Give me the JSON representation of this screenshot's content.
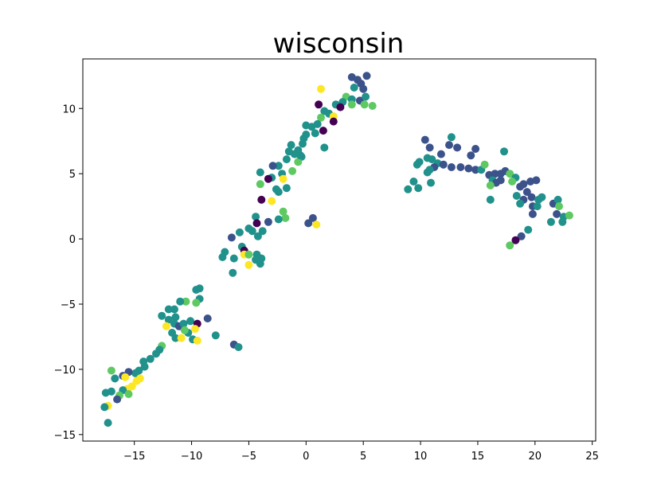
{
  "chart_data": {
    "type": "scatter",
    "title": "wisconsin",
    "xlabel": "",
    "ylabel": "",
    "xlim": [
      -19.5,
      25.3
    ],
    "ylim": [
      -15.5,
      13.8
    ],
    "xticks": [
      -15,
      -10,
      -5,
      0,
      5,
      10,
      15,
      20,
      25
    ],
    "yticks": [
      -15,
      -10,
      -5,
      0,
      5,
      10
    ],
    "grid": false,
    "legend": "none",
    "colors": {
      "c0": "#440154",
      "c1": "#3b528b",
      "c2": "#21918c",
      "c3": "#5ec962",
      "c4": "#fde725"
    },
    "points": [
      [
        4.0,
        12.4,
        "c1"
      ],
      [
        4.5,
        12.2,
        "c1"
      ],
      [
        5.3,
        12.5,
        "c1"
      ],
      [
        4.8,
        11.9,
        "c1"
      ],
      [
        4.2,
        11.6,
        "c2"
      ],
      [
        5.0,
        11.5,
        "c1"
      ],
      [
        1.3,
        11.5,
        "c4"
      ],
      [
        3.5,
        10.9,
        "c3"
      ],
      [
        4.0,
        10.7,
        "c2"
      ],
      [
        4.7,
        10.6,
        "c1"
      ],
      [
        5.2,
        10.9,
        "c2"
      ],
      [
        1.1,
        10.3,
        "c0"
      ],
      [
        3.2,
        10.5,
        "c2"
      ],
      [
        2.6,
        10.3,
        "c2"
      ],
      [
        3.0,
        10.1,
        "c0"
      ],
      [
        4.0,
        10.3,
        "c3"
      ],
      [
        5.1,
        10.3,
        "c3"
      ],
      [
        5.8,
        10.2,
        "c3"
      ],
      [
        1.6,
        9.8,
        "c2"
      ],
      [
        2.0,
        9.6,
        "c2"
      ],
      [
        1.3,
        9.3,
        "c3"
      ],
      [
        2.4,
        9.4,
        "c4"
      ],
      [
        2.4,
        9.0,
        "c0"
      ],
      [
        1.0,
        8.8,
        "c2"
      ],
      [
        0.5,
        8.6,
        "c2"
      ],
      [
        0.0,
        8.7,
        "c2"
      ],
      [
        1.5,
        8.3,
        "c0"
      ],
      [
        0.8,
        8.1,
        "c2"
      ],
      [
        0.0,
        8.0,
        "c2"
      ],
      [
        -0.2,
        7.7,
        "c2"
      ],
      [
        -1.3,
        7.2,
        "c2"
      ],
      [
        -0.3,
        7.3,
        "c2"
      ],
      [
        -0.7,
        6.8,
        "c2"
      ],
      [
        -1.5,
        6.7,
        "c2"
      ],
      [
        -1.0,
        6.5,
        "c2"
      ],
      [
        -0.4,
        6.3,
        "c2"
      ],
      [
        1.6,
        7.0,
        "c2"
      ],
      [
        -1.7,
        6.1,
        "c2"
      ],
      [
        -0.7,
        5.9,
        "c3"
      ],
      [
        -2.4,
        5.6,
        "c2"
      ],
      [
        -1.2,
        5.2,
        "c3"
      ],
      [
        -2.1,
        5.0,
        "c2"
      ],
      [
        -2.9,
        5.6,
        "c1"
      ],
      [
        -4.0,
        5.1,
        "c2"
      ],
      [
        -3.0,
        4.7,
        "c2"
      ],
      [
        -3.3,
        4.6,
        "c0"
      ],
      [
        -0.5,
        6.4,
        "c2"
      ],
      [
        -2.0,
        4.6,
        "c4"
      ],
      [
        -4.0,
        4.2,
        "c3"
      ],
      [
        -2.6,
        3.8,
        "c2"
      ],
      [
        -2.4,
        3.6,
        "c2"
      ],
      [
        -1.7,
        3.9,
        "c2"
      ],
      [
        -3.9,
        3.0,
        "c0"
      ],
      [
        -3.0,
        2.9,
        "c4"
      ],
      [
        -2.0,
        2.1,
        "c3"
      ],
      [
        -1.8,
        1.6,
        "c3"
      ],
      [
        -2.4,
        1.5,
        "c2"
      ],
      [
        -3.3,
        1.3,
        "c1"
      ],
      [
        -4.4,
        1.7,
        "c2"
      ],
      [
        -4.3,
        1.2,
        "c0"
      ],
      [
        -5.0,
        0.8,
        "c2"
      ],
      [
        -4.7,
        0.6,
        "c2"
      ],
      [
        -3.8,
        0.6,
        "c2"
      ],
      [
        -5.8,
        0.5,
        "c2"
      ],
      [
        -4.2,
        0.2,
        "c2"
      ],
      [
        -6.5,
        0.1,
        "c1"
      ],
      [
        -5.6,
        -0.6,
        "c2"
      ],
      [
        -5.4,
        -0.9,
        "c0"
      ],
      [
        -5.4,
        -1.2,
        "c4"
      ],
      [
        -5.0,
        -1.2,
        "c3"
      ],
      [
        -4.3,
        -1.2,
        "c2"
      ],
      [
        -4.4,
        -1.6,
        "c2"
      ],
      [
        -3.9,
        -1.5,
        "c2"
      ],
      [
        -4.0,
        -1.9,
        "c2"
      ],
      [
        -5.0,
        -2.0,
        "c4"
      ],
      [
        -6.3,
        -1.5,
        "c2"
      ],
      [
        -7.1,
        -1.0,
        "c2"
      ],
      [
        -7.3,
        -1.4,
        "c2"
      ],
      [
        -6.4,
        -2.6,
        "c2"
      ],
      [
        0.2,
        1.2,
        "c1"
      ],
      [
        0.6,
        1.6,
        "c1"
      ],
      [
        0.9,
        1.1,
        "c4"
      ],
      [
        -9.6,
        -3.9,
        "c2"
      ],
      [
        -9.3,
        -3.8,
        "c2"
      ],
      [
        -9.3,
        -4.6,
        "c2"
      ],
      [
        -9.6,
        -4.9,
        "c3"
      ],
      [
        -10.5,
        -4.8,
        "c3"
      ],
      [
        -11.0,
        -4.8,
        "c2"
      ],
      [
        -11.5,
        -5.4,
        "c2"
      ],
      [
        -12.0,
        -5.4,
        "c2"
      ],
      [
        -11.4,
        -6.0,
        "c2"
      ],
      [
        -12.6,
        -5.9,
        "c2"
      ],
      [
        -12.0,
        -6.2,
        "c2"
      ],
      [
        -11.5,
        -6.5,
        "c2"
      ],
      [
        -12.2,
        -6.7,
        "c4"
      ],
      [
        -11.1,
        -6.7,
        "c1"
      ],
      [
        -10.7,
        -6.5,
        "c2"
      ],
      [
        -10.1,
        -6.3,
        "c2"
      ],
      [
        -9.5,
        -6.5,
        "c0"
      ],
      [
        -8.6,
        -6.1,
        "c1"
      ],
      [
        -9.7,
        -6.9,
        "c4"
      ],
      [
        -10.3,
        -7.2,
        "c2"
      ],
      [
        -10.6,
        -7.0,
        "c3"
      ],
      [
        -11.7,
        -7.2,
        "c2"
      ],
      [
        -11.4,
        -7.6,
        "c2"
      ],
      [
        -10.9,
        -7.6,
        "c4"
      ],
      [
        -9.9,
        -7.7,
        "c2"
      ],
      [
        -9.5,
        -7.8,
        "c4"
      ],
      [
        -7.9,
        -7.4,
        "c2"
      ],
      [
        -12.6,
        -8.2,
        "c3"
      ],
      [
        -12.8,
        -8.5,
        "c2"
      ],
      [
        -13.1,
        -8.8,
        "c2"
      ],
      [
        -13.6,
        -9.2,
        "c2"
      ],
      [
        -14.2,
        -9.4,
        "c2"
      ],
      [
        -14.1,
        -9.8,
        "c2"
      ],
      [
        -14.6,
        -10.1,
        "c2"
      ],
      [
        -14.9,
        -10.3,
        "c2"
      ],
      [
        -15.5,
        -10.2,
        "c1"
      ],
      [
        -16.0,
        -10.5,
        "c1"
      ],
      [
        -16.7,
        -10.7,
        "c2"
      ],
      [
        -15.8,
        -10.6,
        "c4"
      ],
      [
        -14.5,
        -10.7,
        "c4"
      ],
      [
        -14.8,
        -10.9,
        "c4"
      ],
      [
        -17.0,
        -10.1,
        "c3"
      ],
      [
        -15.2,
        -11.3,
        "c4"
      ],
      [
        -15.6,
        -11.5,
        "c4"
      ],
      [
        -16.0,
        -11.6,
        "c2"
      ],
      [
        -17.0,
        -11.7,
        "c2"
      ],
      [
        -17.5,
        -11.8,
        "c2"
      ],
      [
        -16.3,
        -12.0,
        "c3"
      ],
      [
        -15.5,
        -11.9,
        "c3"
      ],
      [
        -16.5,
        -12.3,
        "c1"
      ],
      [
        -17.3,
        -12.8,
        "c4"
      ],
      [
        -17.6,
        -12.9,
        "c2"
      ],
      [
        -17.3,
        -14.1,
        "c2"
      ],
      [
        -6.3,
        -8.1,
        "c1"
      ],
      [
        -5.9,
        -8.3,
        "c2"
      ],
      [
        10.4,
        7.6,
        "c1"
      ],
      [
        12.7,
        7.8,
        "c2"
      ],
      [
        12.5,
        7.2,
        "c1"
      ],
      [
        13.2,
        7.0,
        "c1"
      ],
      [
        14.8,
        6.9,
        "c1"
      ],
      [
        14.4,
        6.4,
        "c1"
      ],
      [
        17.3,
        6.7,
        "c2"
      ],
      [
        10.8,
        7.0,
        "c1"
      ],
      [
        11.8,
        6.5,
        "c1"
      ],
      [
        9.9,
        5.9,
        "c2"
      ],
      [
        9.7,
        5.7,
        "c2"
      ],
      [
        10.6,
        6.2,
        "c2"
      ],
      [
        11.0,
        6.1,
        "c2"
      ],
      [
        11.5,
        5.8,
        "c2"
      ],
      [
        12.0,
        5.7,
        "c1"
      ],
      [
        11.2,
        5.5,
        "c1"
      ],
      [
        10.6,
        5.1,
        "c2"
      ],
      [
        10.8,
        5.3,
        "c2"
      ],
      [
        12.7,
        5.5,
        "c1"
      ],
      [
        13.5,
        5.5,
        "c1"
      ],
      [
        14.2,
        5.4,
        "c1"
      ],
      [
        14.8,
        5.3,
        "c1"
      ],
      [
        15.3,
        5.3,
        "c2"
      ],
      [
        15.6,
        5.7,
        "c3"
      ],
      [
        16.0,
        4.9,
        "c1"
      ],
      [
        16.5,
        5.0,
        "c1"
      ],
      [
        17.0,
        5.0,
        "c1"
      ],
      [
        17.4,
        5.2,
        "c1"
      ],
      [
        17.8,
        5.0,
        "c3"
      ],
      [
        18.3,
        4.7,
        "c2"
      ],
      [
        16.3,
        4.5,
        "c2"
      ],
      [
        16.6,
        4.3,
        "c1"
      ],
      [
        17.0,
        4.5,
        "c1"
      ],
      [
        16.1,
        4.1,
        "c3"
      ],
      [
        18.0,
        4.4,
        "c3"
      ],
      [
        18.7,
        4.0,
        "c1"
      ],
      [
        19.0,
        4.2,
        "c1"
      ],
      [
        19.6,
        4.4,
        "c1"
      ],
      [
        20.1,
        4.5,
        "c1"
      ],
      [
        19.3,
        3.6,
        "c1"
      ],
      [
        19.7,
        3.2,
        "c1"
      ],
      [
        20.3,
        3.0,
        "c2"
      ],
      [
        20.6,
        3.2,
        "c2"
      ],
      [
        19.0,
        3.0,
        "c1"
      ],
      [
        18.4,
        3.3,
        "c2"
      ],
      [
        18.7,
        2.7,
        "c2"
      ],
      [
        19.8,
        2.5,
        "c1"
      ],
      [
        20.2,
        2.5,
        "c2"
      ],
      [
        21.6,
        2.7,
        "c1"
      ],
      [
        22.0,
        3.0,
        "c2"
      ],
      [
        22.1,
        2.5,
        "c3"
      ],
      [
        21.9,
        1.9,
        "c1"
      ],
      [
        22.5,
        1.7,
        "c2"
      ],
      [
        22.4,
        1.3,
        "c2"
      ],
      [
        21.4,
        1.3,
        "c2"
      ],
      [
        23.0,
        1.8,
        "c3"
      ],
      [
        19.8,
        1.9,
        "c1"
      ],
      [
        19.4,
        0.7,
        "c2"
      ],
      [
        18.8,
        0.2,
        "c1"
      ],
      [
        18.3,
        -0.1,
        "c0"
      ],
      [
        17.8,
        -0.5,
        "c3"
      ],
      [
        16.1,
        3.0,
        "c2"
      ],
      [
        9.4,
        4.4,
        "c2"
      ],
      [
        9.8,
        3.9,
        "c2"
      ],
      [
        8.9,
        3.8,
        "c2"
      ],
      [
        10.9,
        4.3,
        "c2"
      ]
    ]
  }
}
